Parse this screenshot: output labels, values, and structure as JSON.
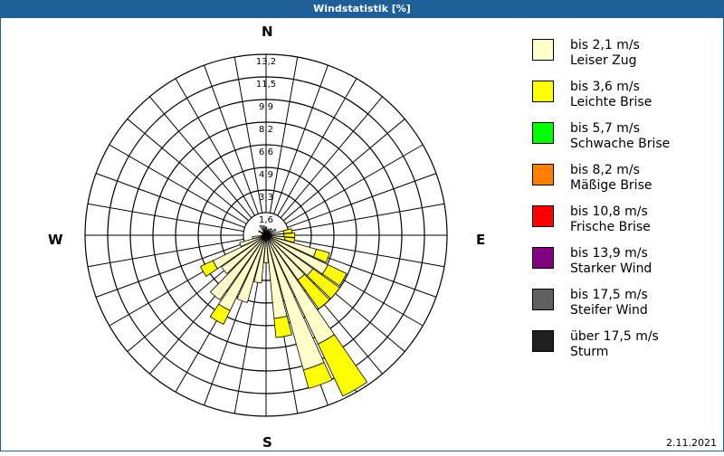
{
  "window": {
    "title": "Windstatistik [%]"
  },
  "compass": {
    "n": "N",
    "e": "E",
    "s": "S",
    "w": "W"
  },
  "footer": {
    "date": "2.11.2021"
  },
  "legend": [
    {
      "range": "bis 2,1 m/s",
      "name": "Leiser Zug",
      "color": "#ffffcc"
    },
    {
      "range": "bis 3,6 m/s",
      "name": "Leichte Brise",
      "color": "#ffff00"
    },
    {
      "range": "bis 5,7 m/s",
      "name": "Schwache Brise",
      "color": "#00ff00"
    },
    {
      "range": "bis 8,2 m/s",
      "name": "Mäßige Brise",
      "color": "#ff8000"
    },
    {
      "range": "bis 10,8 m/s",
      "name": "Frische Brise",
      "color": "#ff0000"
    },
    {
      "range": "bis 13,9 m/s",
      "name": "Starker Wind",
      "color": "#800080"
    },
    {
      "range": "bis 17,5 m/s",
      "name": "Steifer Wind",
      "color": "#606060"
    },
    {
      "range": "über 17,5 m/s",
      "name": "Sturm",
      "color": "#202020"
    }
  ],
  "chart_data": {
    "type": "wind-rose",
    "title": "Windstatistik [%]",
    "unit": "%",
    "radial_ticks": [
      1.6,
      3.3,
      4.9,
      6.6,
      8.2,
      9.9,
      11.5,
      13.2
    ],
    "rmax": 13.2,
    "sector_width_deg": 10,
    "series_names": [
      "bis 2,1 m/s",
      "bis 3,6 m/s"
    ],
    "sectors": [
      {
        "bearing": 0,
        "values": [
          0.6,
          0.0
        ]
      },
      {
        "bearing": 20,
        "values": [
          0.5,
          0.0
        ]
      },
      {
        "bearing": 40,
        "values": [
          0.6,
          0.0
        ]
      },
      {
        "bearing": 60,
        "values": [
          0.8,
          0.0
        ]
      },
      {
        "bearing": 80,
        "values": [
          1.3,
          0.6
        ]
      },
      {
        "bearing": 90,
        "values": [
          1.3,
          0.8
        ]
      },
      {
        "bearing": 100,
        "values": [
          1.4,
          0.7
        ]
      },
      {
        "bearing": 110,
        "values": [
          3.8,
          1.0
        ]
      },
      {
        "bearing": 120,
        "values": [
          5.0,
          1.5
        ]
      },
      {
        "bearing": 130,
        "values": [
          4.2,
          2.4
        ]
      },
      {
        "bearing": 140,
        "values": [
          4.0,
          2.6
        ]
      },
      {
        "bearing": 150,
        "values": [
          8.8,
          4.2
        ]
      },
      {
        "bearing": 160,
        "values": [
          10.2,
          1.4
        ]
      },
      {
        "bearing": 170,
        "values": [
          6.1,
          1.4
        ]
      },
      {
        "bearing": 180,
        "values": [
          2.0,
          0.0
        ]
      },
      {
        "bearing": 190,
        "values": [
          3.5,
          0.0
        ]
      },
      {
        "bearing": 200,
        "values": [
          5.1,
          0.0
        ]
      },
      {
        "bearing": 210,
        "values": [
          6.1,
          1.1
        ]
      },
      {
        "bearing": 220,
        "values": [
          5.8,
          0.0
        ]
      },
      {
        "bearing": 230,
        "values": [
          4.0,
          0.0
        ]
      },
      {
        "bearing": 240,
        "values": [
          4.3,
          1.0
        ]
      },
      {
        "bearing": 250,
        "values": [
          2.0,
          0.0
        ]
      },
      {
        "bearing": 260,
        "values": [
          1.0,
          0.0
        ]
      },
      {
        "bearing": 300,
        "values": [
          0.6,
          0.0
        ]
      },
      {
        "bearing": 330,
        "values": [
          0.8,
          0.0
        ]
      },
      {
        "bearing": 345,
        "values": [
          0.7,
          0.0
        ]
      }
    ]
  }
}
